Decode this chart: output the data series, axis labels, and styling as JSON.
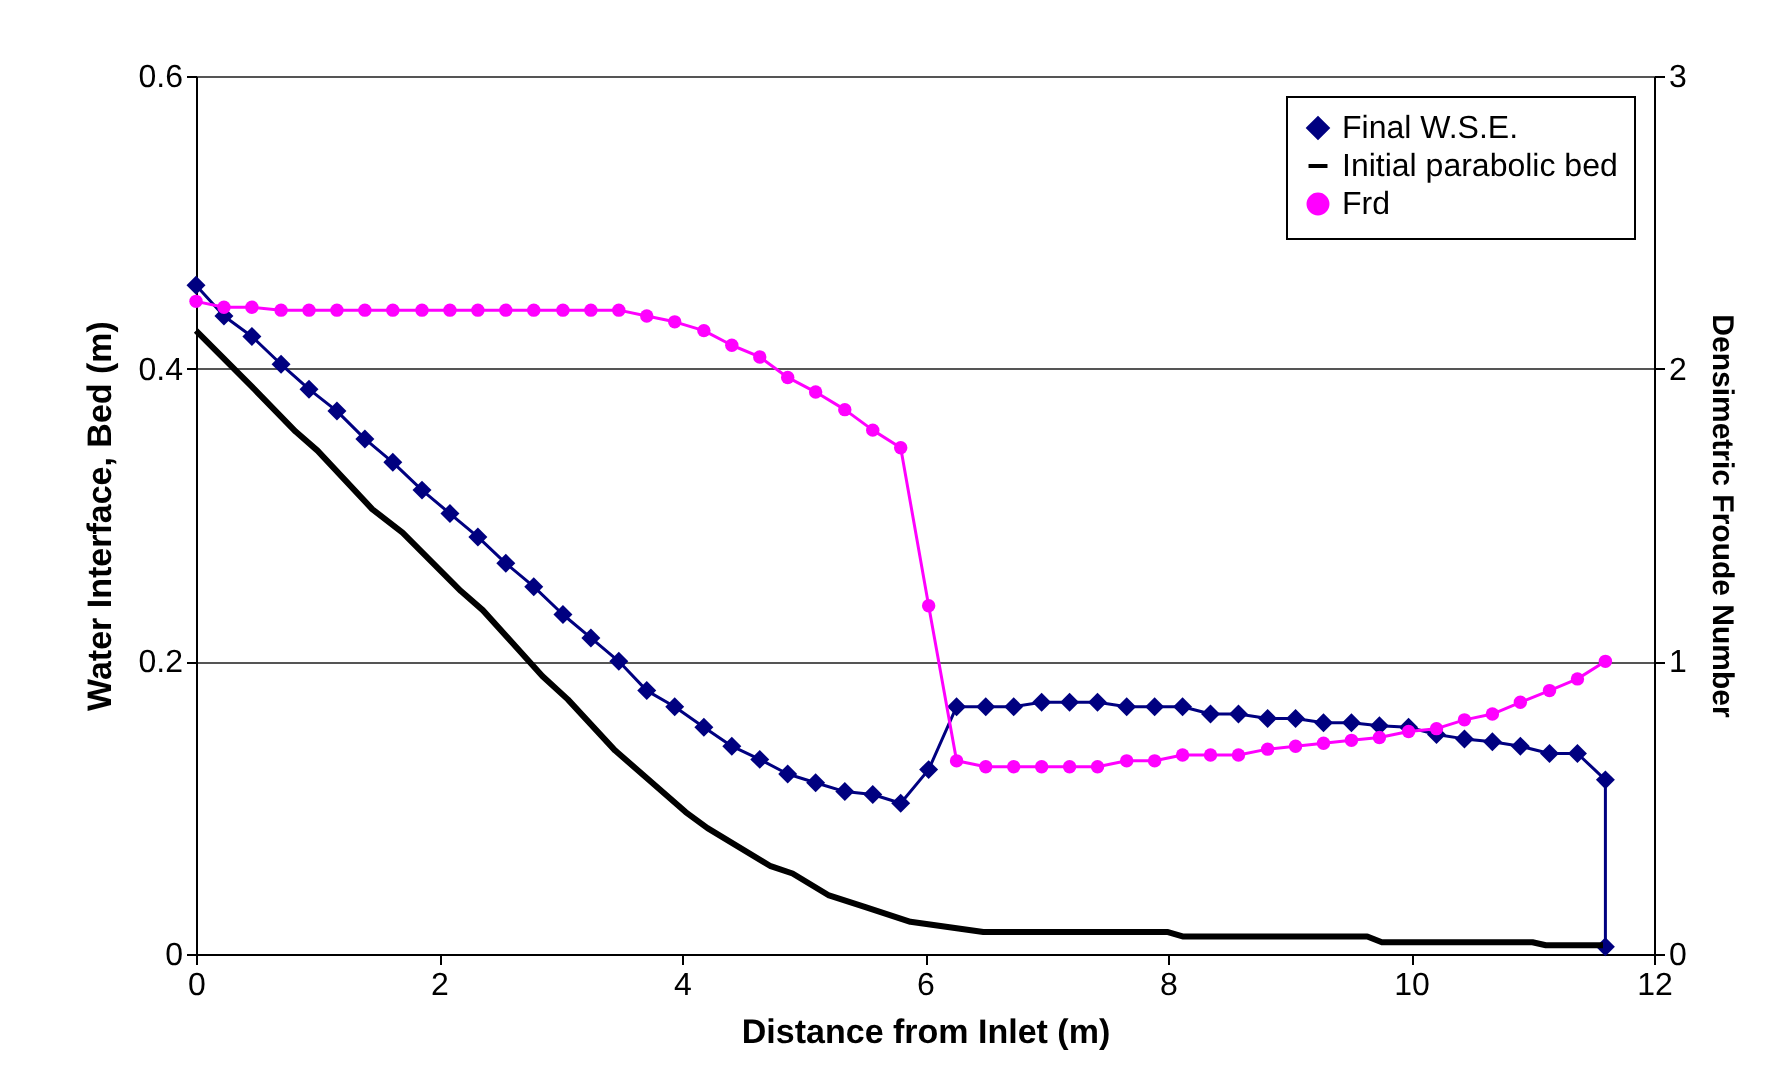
{
  "chart_data": {
    "type": "line",
    "xlabel": "Distance from Inlet (m)",
    "ylabel": "Water Interface, Bed (m)",
    "y2label": "Densimetric Froude Number",
    "x": [
      0,
      0.23,
      0.46,
      0.7,
      0.93,
      1.16,
      1.39,
      1.62,
      1.86,
      2.09,
      2.32,
      2.55,
      2.78,
      3.02,
      3.25,
      3.48,
      3.71,
      3.94,
      4.18,
      4.41,
      4.64,
      4.87,
      5.1,
      5.34,
      5.57,
      5.8,
      6.03,
      6.26,
      6.5,
      6.73,
      6.96,
      7.19,
      7.42,
      7.66,
      7.89,
      8.12,
      8.35,
      8.58,
      8.82,
      9.05,
      9.28,
      9.51,
      9.74,
      9.98,
      10.21,
      10.44,
      10.67,
      10.9,
      11.14,
      11.37,
      11.6
    ],
    "series": [
      {
        "name": "Final W.S.E.",
        "color": "#000080",
        "marker": "diamond",
        "x": [
          0,
          0.23,
          0.46,
          0.7,
          0.93,
          1.16,
          1.39,
          1.62,
          1.86,
          2.09,
          2.32,
          2.55,
          2.78,
          3.02,
          3.25,
          3.48,
          3.71,
          3.94,
          4.18,
          4.41,
          4.64,
          4.87,
          5.1,
          5.34,
          5.57,
          5.8,
          6.03,
          6.26,
          6.5,
          6.73,
          6.96,
          7.19,
          7.42,
          7.66,
          7.89,
          8.12,
          8.35,
          8.58,
          8.82,
          9.05,
          9.28,
          9.51,
          9.74,
          9.98,
          10.21,
          10.44,
          10.67,
          10.9,
          11.14,
          11.37,
          11.6,
          11.6
        ],
        "values": [
          0.457,
          0.436,
          0.422,
          0.403,
          0.386,
          0.371,
          0.352,
          0.336,
          0.317,
          0.301,
          0.285,
          0.267,
          0.251,
          0.232,
          0.216,
          0.2,
          0.18,
          0.169,
          0.155,
          0.142,
          0.133,
          0.123,
          0.117,
          0.111,
          0.109,
          0.103,
          0.126,
          0.169,
          0.169,
          0.169,
          0.172,
          0.172,
          0.172,
          0.169,
          0.169,
          0.169,
          0.164,
          0.164,
          0.161,
          0.161,
          0.158,
          0.158,
          0.156,
          0.155,
          0.15,
          0.147,
          0.145,
          0.142,
          0.137,
          0.137,
          0.119,
          0.005
        ]
      },
      {
        "name": "Initial parabolic bed",
        "color": "#000000",
        "marker": "none",
        "x": [
          0,
          0.48,
          0.82,
          1.0,
          1.45,
          1.7,
          2.18,
          2.36,
          2.85,
          3.06,
          3.45,
          3.7,
          4.03,
          4.21,
          4.73,
          4.91,
          5.21,
          5.51,
          5.88,
          6.48,
          8.0,
          8.12,
          9.64,
          9.76,
          11.0,
          11.11,
          11.58
        ],
        "values": [
          0.426,
          0.386,
          0.357,
          0.344,
          0.304,
          0.288,
          0.248,
          0.235,
          0.19,
          0.174,
          0.139,
          0.121,
          0.097,
          0.086,
          0.06,
          0.055,
          0.04,
          0.032,
          0.022,
          0.015,
          0.015,
          0.012,
          0.012,
          0.008,
          0.008,
          0.006,
          0.006
        ]
      },
      {
        "name": "Frd",
        "color": "#ff00ff",
        "marker": "circle",
        "axis": "y2",
        "values": [
          2.23,
          2.21,
          2.21,
          2.2,
          2.2,
          2.2,
          2.2,
          2.2,
          2.2,
          2.2,
          2.2,
          2.2,
          2.2,
          2.2,
          2.2,
          2.2,
          2.18,
          2.16,
          2.13,
          2.08,
          2.04,
          1.97,
          1.92,
          1.86,
          1.79,
          1.73,
          1.19,
          0.66,
          0.64,
          0.64,
          0.64,
          0.64,
          0.64,
          0.66,
          0.66,
          0.68,
          0.68,
          0.68,
          0.7,
          0.71,
          0.72,
          0.73,
          0.74,
          0.76,
          0.77,
          0.8,
          0.82,
          0.86,
          0.9,
          0.94,
          1.0
        ]
      }
    ],
    "xlim": [
      0,
      12
    ],
    "xticks": [
      0,
      2,
      4,
      6,
      8,
      10,
      12
    ],
    "ylim": [
      0,
      0.6
    ],
    "yticks": [
      0,
      0.2,
      0.4,
      0.6
    ],
    "y2lim": [
      0,
      3
    ],
    "y2ticks": [
      0,
      1,
      2,
      3
    ],
    "grid": "y",
    "legend": "top right"
  }
}
